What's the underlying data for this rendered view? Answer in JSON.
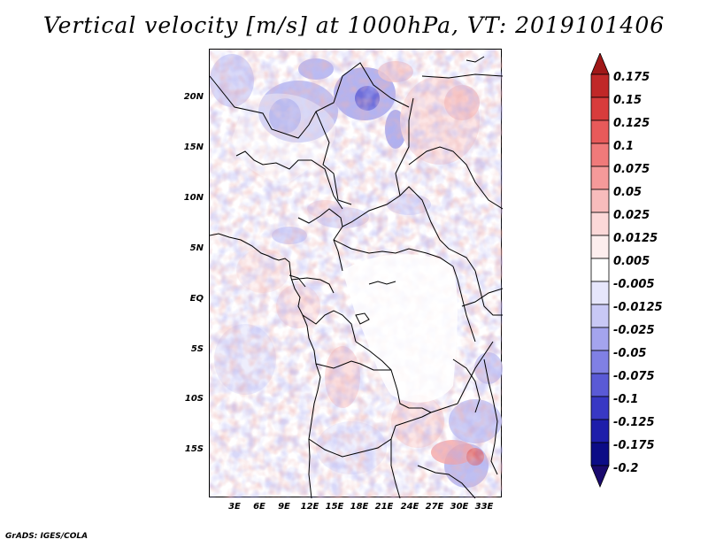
{
  "title": "Vertical velocity [m/s] at 1000hPa, VT: 2019101406",
  "map": {
    "lat_labels": [
      "20N",
      "15N",
      "10N",
      "5N",
      "EQ",
      "5S",
      "10S",
      "15S"
    ],
    "lon_labels": [
      "3E",
      "6E",
      "9E",
      "12E",
      "15E",
      "18E",
      "21E",
      "24E",
      "27E",
      "30E",
      "33E"
    ],
    "field": "vertical velocity",
    "units": "m/s",
    "level": "1000hPa"
  },
  "colorbar": {
    "labels": [
      "0.175",
      "0.15",
      "0.125",
      "0.1",
      "0.075",
      "0.05",
      "0.025",
      "0.0125",
      "0.005",
      "-0.005",
      "-0.0125",
      "-0.025",
      "-0.05",
      "-0.075",
      "-0.1",
      "-0.125",
      "-0.175",
      "-0.2"
    ],
    "colors": [
      "#a01818",
      "#c02828",
      "#d83c3c",
      "#e85a5a",
      "#f07a7a",
      "#f59a9a",
      "#f8bcbc",
      "#fcd8d8",
      "#fdeeee",
      "#ffffff",
      "#e6e6fb",
      "#c8c8f5",
      "#a4a4ee",
      "#8080e4",
      "#5a5ad6",
      "#3838c4",
      "#1e1eaa",
      "#0c0c86",
      "#1a0a6e"
    ]
  },
  "credit": "GrADS: IGES/COLA"
}
